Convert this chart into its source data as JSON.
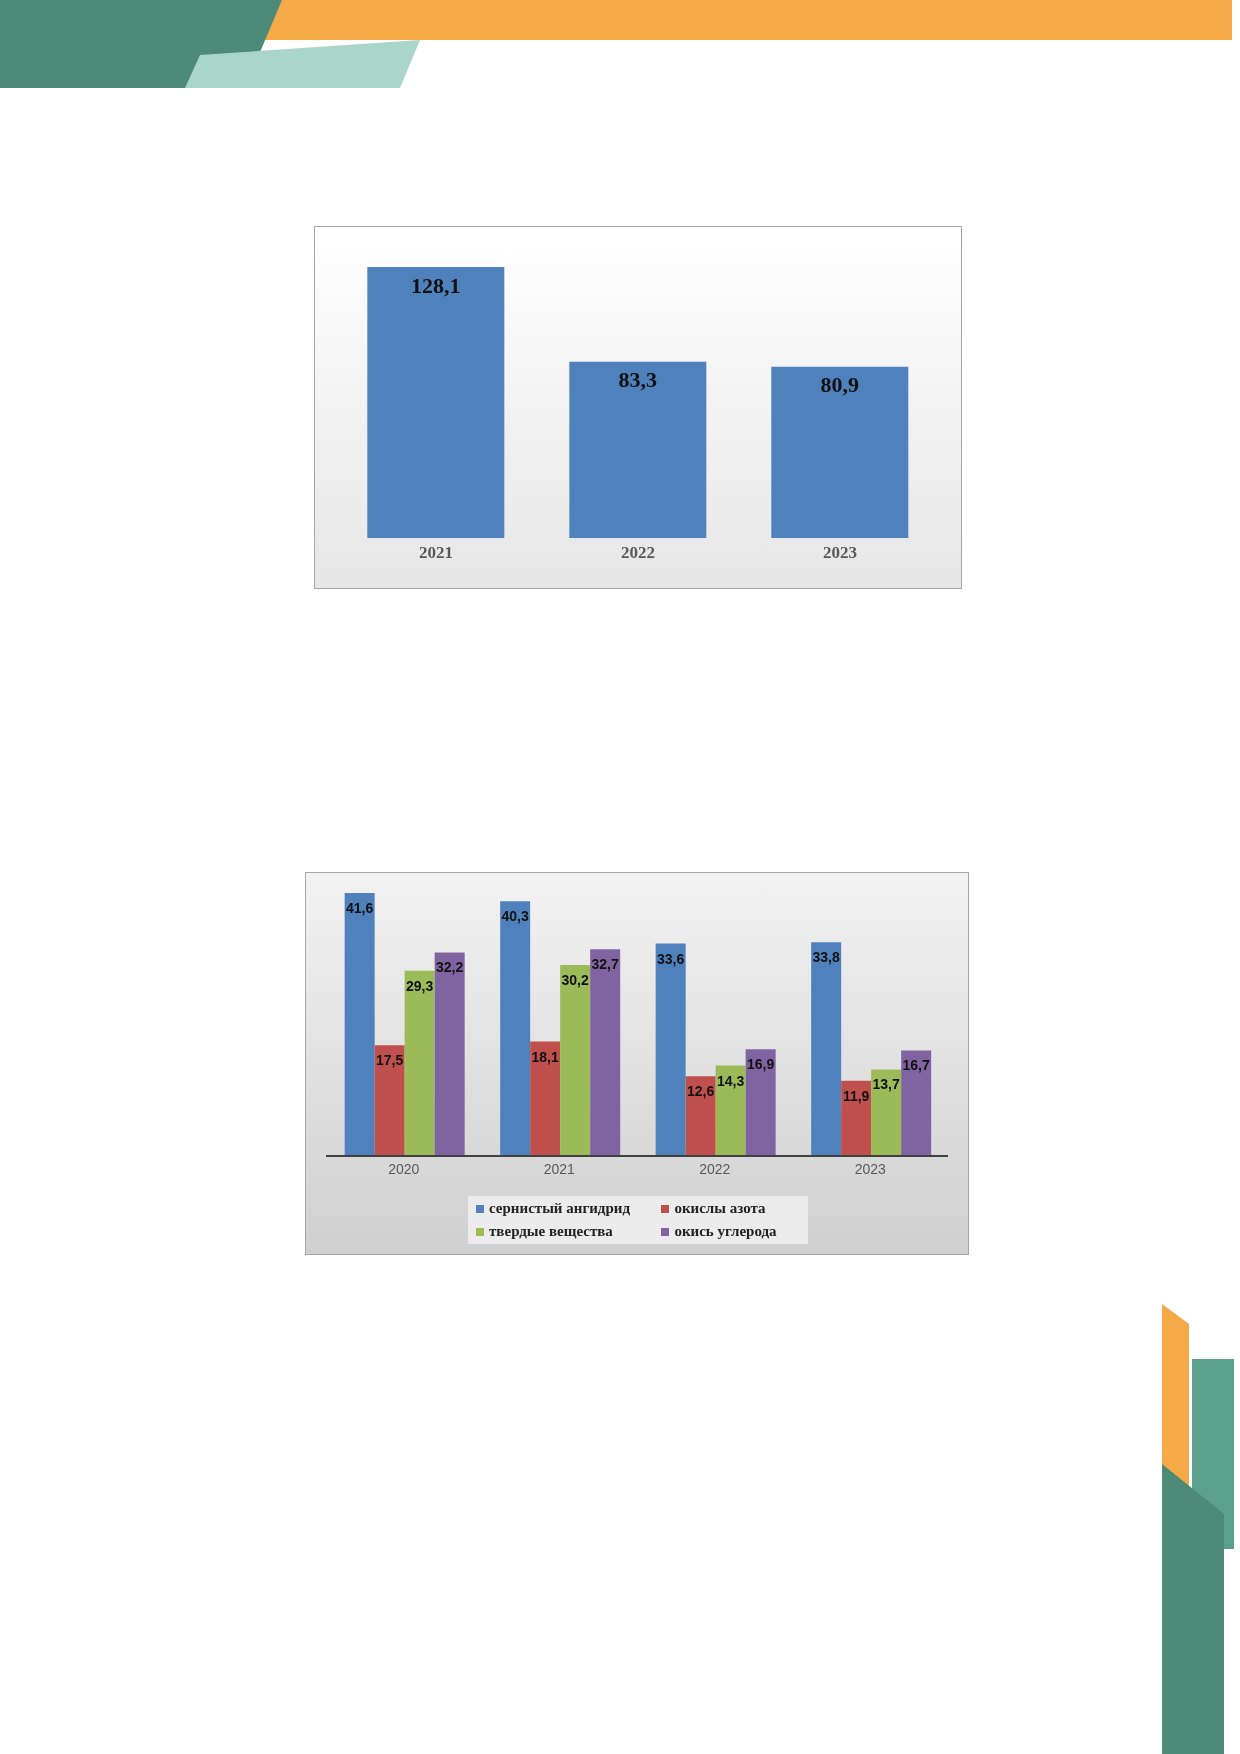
{
  "chart_data": [
    {
      "type": "bar",
      "categories": [
        "2021",
        "2022",
        "2023"
      ],
      "values": [
        128.1,
        83.3,
        80.9
      ],
      "value_labels": [
        "128,1",
        "83,3",
        "80,9"
      ],
      "color": "#4f81bd",
      "tick_labels": "x"
    },
    {
      "type": "bar",
      "categories": [
        "2020",
        "2021",
        "2022",
        "2023"
      ],
      "series": [
        {
          "name": "сернистый ангидрид",
          "color": "#4f81bd",
          "values": [
            41.6,
            40.3,
            33.6,
            33.8
          ],
          "value_labels": [
            "41,6",
            "40,3",
            "33,6",
            "33,8"
          ]
        },
        {
          "name": "окислы азота",
          "color": "#c0504d",
          "values": [
            17.5,
            18.1,
            12.6,
            11.9
          ],
          "value_labels": [
            "17,5",
            "18,1",
            "12,6",
            "11,9"
          ]
        },
        {
          "name": "твердые вещества",
          "color": "#9bbb59",
          "values": [
            29.3,
            30.2,
            14.3,
            13.7
          ],
          "value_labels": [
            "29,3",
            "30,2",
            "14,3",
            "13,7"
          ]
        },
        {
          "name": "окись углерода",
          "color": "#8064a2",
          "values": [
            32.2,
            32.7,
            16.9,
            16.7
          ],
          "value_labels": [
            "32,2",
            "32,7",
            "16,9",
            "16,7"
          ]
        }
      ],
      "tick_labels": "x",
      "legend": "bottom"
    }
  ]
}
